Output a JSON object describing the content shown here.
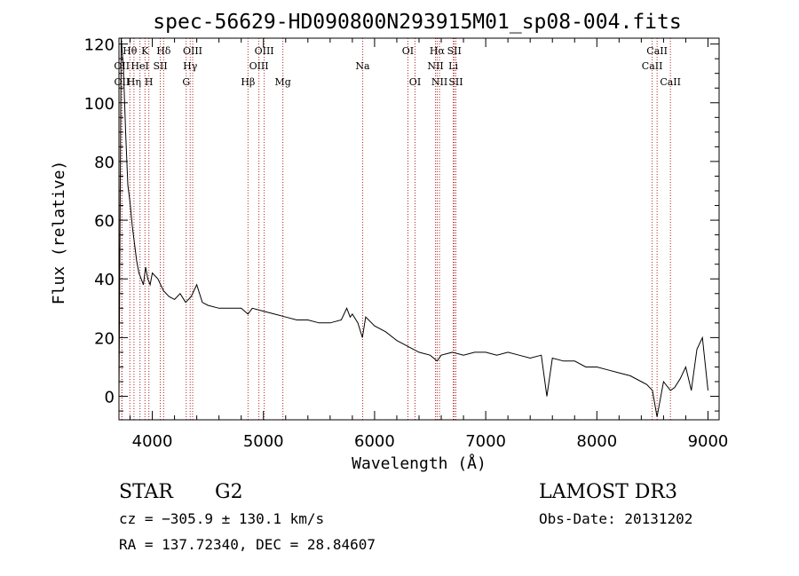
{
  "chart_data": {
    "type": "line",
    "title": "spec-56629-HD090800N293915M01_sp08-004.fits",
    "xlabel": "Wavelength (Å)",
    "ylabel": "Flux (relative)",
    "xlim": [
      3700,
      9100
    ],
    "ylim": [
      -8,
      122
    ],
    "xticks": [
      4000,
      5000,
      6000,
      7000,
      8000,
      9000
    ],
    "xtick_labels": [
      "4000",
      "5000",
      "6000",
      "7000",
      "8000",
      "9000"
    ],
    "yticks": [
      0,
      20,
      40,
      60,
      80,
      100,
      120
    ],
    "ytick_labels": [
      "0",
      "20",
      "40",
      "60",
      "80",
      "100",
      "120"
    ],
    "grid": false,
    "series": [
      {
        "name": "flux",
        "x": [
          3700,
          3720,
          3740,
          3760,
          3780,
          3800,
          3820,
          3840,
          3860,
          3880,
          3900,
          3920,
          3940,
          3960,
          3980,
          4000,
          4050,
          4100,
          4150,
          4200,
          4250,
          4300,
          4350,
          4400,
          4450,
          4500,
          4600,
          4700,
          4800,
          4861,
          4900,
          5000,
          5100,
          5200,
          5300,
          5400,
          5500,
          5600,
          5700,
          5750,
          5780,
          5800,
          5850,
          5890,
          5920,
          6000,
          6100,
          6200,
          6300,
          6400,
          6500,
          6563,
          6600,
          6700,
          6800,
          6900,
          7000,
          7100,
          7200,
          7300,
          7400,
          7500,
          7550,
          7600,
          7700,
          7800,
          7900,
          8000,
          8100,
          8200,
          8300,
          8400,
          8450,
          8500,
          8542,
          8600,
          8662,
          8700,
          8750,
          8800,
          8850,
          8900,
          8950,
          9000
        ],
        "values": [
          0,
          122,
          112,
          90,
          72,
          66,
          58,
          52,
          46,
          42,
          40,
          38,
          44,
          40,
          38,
          42,
          40,
          36,
          34,
          33,
          35,
          32,
          34,
          38,
          32,
          31,
          30,
          30,
          30,
          28,
          30,
          29,
          28,
          27,
          26,
          26,
          25,
          25,
          26,
          30,
          27,
          28,
          25,
          20,
          27,
          24,
          22,
          19,
          17,
          15,
          14,
          12,
          14,
          15,
          14,
          15,
          15,
          14,
          15,
          14,
          13,
          14,
          0,
          13,
          12,
          12,
          10,
          10,
          9,
          8,
          7,
          5,
          4,
          2,
          -7,
          5,
          2,
          3,
          6,
          10,
          2,
          16,
          20,
          2
        ]
      }
    ],
    "lines": [
      {
        "name": "OII",
        "wl": 3727,
        "row": 2
      },
      {
        "name": "Hθ",
        "wl": 3798,
        "row": 0
      },
      {
        "name": "OII",
        "wl": 3726,
        "row": 1
      },
      {
        "name": "Hη",
        "wl": 3835,
        "row": 2
      },
      {
        "name": "HeI",
        "wl": 3889,
        "row": 1
      },
      {
        "name": "K",
        "wl": 3934,
        "row": 0
      },
      {
        "name": "H",
        "wl": 3969,
        "row": 2
      },
      {
        "name": "SII",
        "wl": 4072,
        "row": 1
      },
      {
        "name": "Hδ",
        "wl": 4102,
        "row": 0
      },
      {
        "name": "G",
        "wl": 4305,
        "row": 2
      },
      {
        "name": "Hγ",
        "wl": 4341,
        "row": 1
      },
      {
        "name": "OIII",
        "wl": 4363,
        "row": 0
      },
      {
        "name": "Hβ",
        "wl": 4861,
        "row": 2
      },
      {
        "name": "OIII",
        "wl": 4959,
        "row": 1
      },
      {
        "name": "OIII",
        "wl": 5007,
        "row": 0
      },
      {
        "name": "Mg",
        "wl": 5175,
        "row": 2
      },
      {
        "name": "Na",
        "wl": 5893,
        "row": 1
      },
      {
        "name": "OI",
        "wl": 6300,
        "row": 0
      },
      {
        "name": "OI",
        "wl": 6364,
        "row": 2
      },
      {
        "name": "NII",
        "wl": 6548,
        "row": 1
      },
      {
        "name": "Hα",
        "wl": 6563,
        "row": 0
      },
      {
        "name": "NII",
        "wl": 6584,
        "row": 2
      },
      {
        "name": "Li",
        "wl": 6708,
        "row": 1
      },
      {
        "name": "SII",
        "wl": 6717,
        "row": 0
      },
      {
        "name": "SII",
        "wl": 6731,
        "row": 2
      },
      {
        "name": "CaII",
        "wl": 8498,
        "row": 1
      },
      {
        "name": "CaII",
        "wl": 8542,
        "row": 0
      },
      {
        "name": "CaII",
        "wl": 8662,
        "row": 2
      }
    ]
  },
  "info": {
    "object_class": "STAR",
    "subclass": "G2",
    "survey": "LAMOST DR3",
    "cz": "cz = −305.9 ± 130.1 km/s",
    "obs_date": "Obs-Date: 20131202",
    "coords": "RA = 137.72340, DEC =  28.84607"
  },
  "colors": {
    "axis": "#000000",
    "spectrum": "#000000",
    "line_marker": "#b22222"
  }
}
